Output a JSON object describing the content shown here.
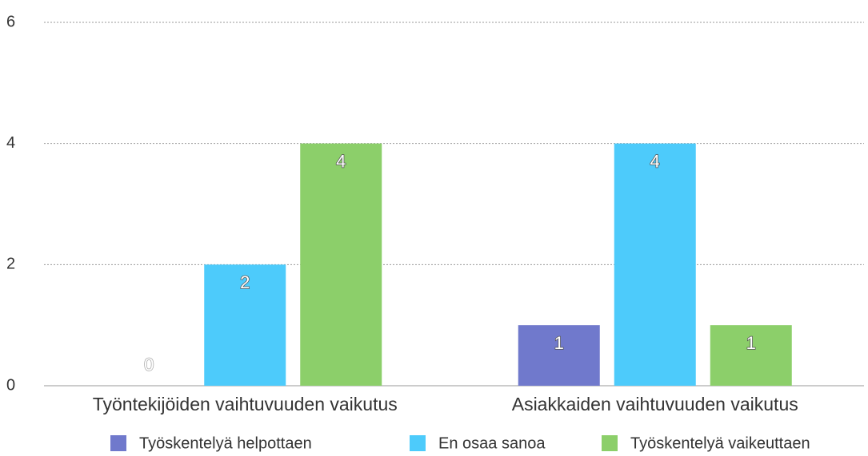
{
  "chart_data": {
    "type": "bar",
    "categories": [
      "Työntekijöiden vaihtuvuuden vaikutus",
      "Asiakkaiden vaihtuvuuden vaikutus"
    ],
    "series": [
      {
        "name": "Työskentelyä helpottaen",
        "color": "#7079cc",
        "values": [
          0,
          1
        ]
      },
      {
        "name": "En osaa sanoa",
        "color": "#4dcbfb",
        "values": [
          2,
          4
        ]
      },
      {
        "name": "Työskentelyä vaikeuttaen",
        "color": "#8ccf6a",
        "values": [
          4,
          1
        ]
      }
    ],
    "ylim": [
      0,
      6
    ],
    "yticks": [
      0,
      2,
      4,
      6
    ],
    "grid": true,
    "legend": "bottom"
  }
}
